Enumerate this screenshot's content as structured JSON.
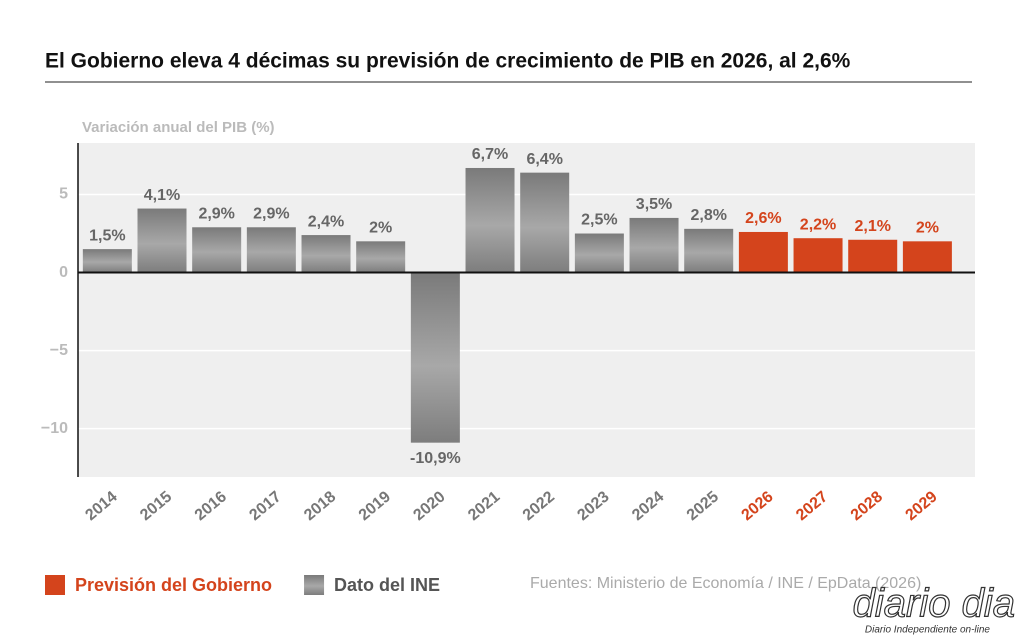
{
  "chart_data": {
    "type": "bar",
    "title": "El Gobierno eleva 4 décimas su previsión de crecimiento de PIB en 2026, al 2,6%",
    "y_label": "Variación anual del PIB (%)",
    "categories": [
      "2014",
      "2015",
      "2016",
      "2017",
      "2018",
      "2019",
      "2020",
      "2021",
      "2022",
      "2023",
      "2024",
      "2025",
      "2026",
      "2027",
      "2028",
      "2029"
    ],
    "series": [
      {
        "name": "Previsión del Gobierno",
        "color": "#d4441c",
        "values": [
          null,
          null,
          null,
          null,
          null,
          null,
          null,
          null,
          null,
          null,
          null,
          null,
          2.6,
          2.2,
          2.1,
          2
        ],
        "value_labels": [
          null,
          null,
          null,
          null,
          null,
          null,
          null,
          null,
          null,
          null,
          null,
          null,
          "2,6%",
          "2,2%",
          "2,1%",
          "2%"
        ]
      },
      {
        "name": "Dato del INE",
        "color": "#888888",
        "values": [
          1.5,
          4.1,
          2.9,
          2.9,
          2.4,
          2,
          -10.9,
          6.7,
          6.4,
          2.5,
          3.5,
          2.8,
          null,
          null,
          null,
          null
        ],
        "value_labels": [
          "1,5%",
          "4,1%",
          "2,9%",
          "2,9%",
          "2,4%",
          "2%",
          "-10,9%",
          "6,7%",
          "6,4%",
          "2,5%",
          "3,5%",
          "2,8%",
          null,
          null,
          null,
          null
        ]
      }
    ],
    "ylim": [
      -13.1,
      8.3
    ],
    "yticks": [
      {
        "value": -10,
        "label": "−10"
      },
      {
        "value": -5,
        "label": "−5"
      },
      0,
      5
    ],
    "grid": true,
    "source": "Fuentes: Ministerio de Economía / INE / EpData (2026)"
  },
  "watermark": {
    "logo": "diario dia",
    "tagline": "Diario Independiente on-line"
  }
}
